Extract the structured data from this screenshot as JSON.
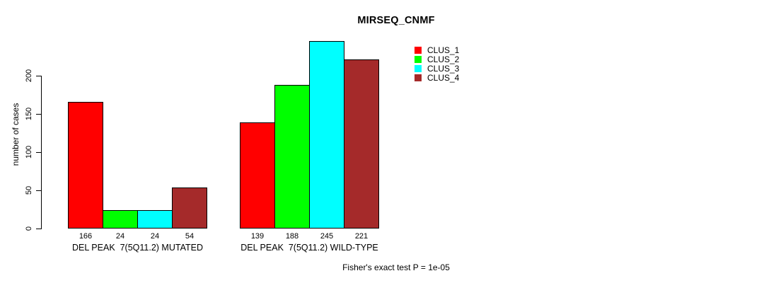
{
  "chart_data": {
    "type": "bar",
    "title": "MIRSEQ_CNMF",
    "ylabel": "number of cases",
    "xlabel": "",
    "ylim": [
      0,
      245
    ],
    "yticks": [
      0,
      50,
      100,
      150,
      200
    ],
    "grid": false,
    "legend_position": "right",
    "bar_value_labels_shown": true,
    "categories": [
      "DEL PEAK  7(5Q11.2) MUTATED",
      "DEL PEAK  7(5Q11.2) WILD-TYPE"
    ],
    "series": [
      {
        "name": "CLUS_1",
        "color": "#FF0000",
        "values": [
          166,
          139
        ]
      },
      {
        "name": "CLUS_2",
        "color": "#00FF00",
        "values": [
          24,
          188
        ]
      },
      {
        "name": "CLUS_3",
        "color": "#00FFFF",
        "values": [
          24,
          245
        ]
      },
      {
        "name": "CLUS_4",
        "color": "#A52A2A",
        "values": [
          54,
          221
        ]
      }
    ],
    "annotation": "Fisher's exact test P = 1e-05"
  }
}
